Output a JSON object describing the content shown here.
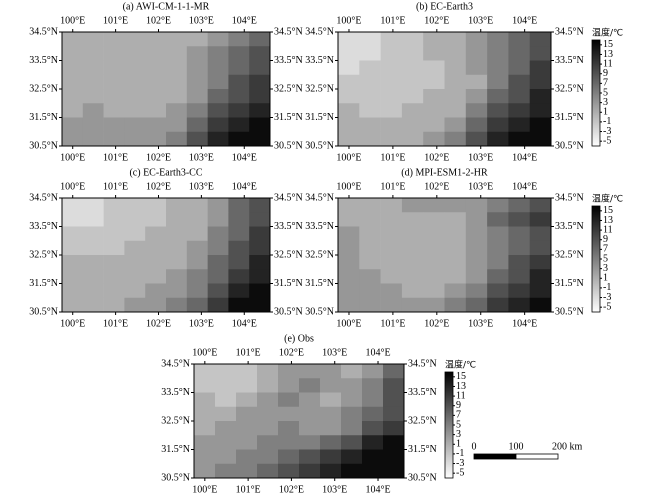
{
  "chart_data": {
    "type": "heatmap",
    "xlim": [
      99.75,
      104.6
    ],
    "ylim": [
      30.5,
      34.5
    ],
    "xticks": [
      {
        "value": 100,
        "label": "100°E"
      },
      {
        "value": 101,
        "label": "101°E"
      },
      {
        "value": 102,
        "label": "102°E"
      },
      {
        "value": 103,
        "label": "103°E"
      },
      {
        "value": 104,
        "label": "104°E"
      }
    ],
    "yticks": [
      {
        "value": 34.5,
        "label": "34.5°N"
      },
      {
        "value": 33.5,
        "label": "33.5°N"
      },
      {
        "value": 32.5,
        "label": "32.5°N"
      },
      {
        "value": 31.5,
        "label": "31.5°N"
      },
      {
        "value": 30.5,
        "label": "30.5°N"
      }
    ],
    "colorbar": {
      "title": "温度/℃",
      "lim": [
        -6,
        16
      ],
      "ticks": [
        15,
        13,
        11,
        9,
        7,
        5,
        3,
        1,
        -1,
        -3,
        -5
      ],
      "colors": [
        "#ffffff",
        "#000000"
      ]
    },
    "scale_bar": {
      "ticks": [
        0,
        100,
        {
          "value": 200,
          "label": "200 km"
        }
      ]
    },
    "panels": [
      {
        "title": "(a) AWI-CM-1-1-MR",
        "colorbar": false,
        "values": [
          [
            1,
            1,
            1,
            1,
            1,
            1,
            1,
            3,
            5,
            7
          ],
          [
            1,
            1,
            1,
            1,
            1,
            1,
            3,
            5,
            7,
            9
          ],
          [
            1,
            1,
            1,
            1,
            1,
            1,
            3,
            5,
            7,
            9
          ],
          [
            1,
            1,
            1,
            1,
            1,
            1,
            3,
            5,
            9,
            11
          ],
          [
            1,
            1,
            1,
            1,
            1,
            1,
            3,
            7,
            9,
            11
          ],
          [
            1,
            3,
            1,
            1,
            1,
            3,
            5,
            9,
            11,
            13
          ],
          [
            3,
            3,
            3,
            3,
            3,
            3,
            7,
            11,
            13,
            15
          ],
          [
            3,
            3,
            3,
            3,
            3,
            5,
            9,
            13,
            15,
            15
          ]
        ]
      },
      {
        "title": "(b) EC-Earth3",
        "colorbar": true,
        "values": [
          [
            -3,
            -3,
            -1,
            -1,
            1,
            1,
            3,
            5,
            7,
            9
          ],
          [
            -3,
            -3,
            -1,
            -1,
            1,
            1,
            3,
            5,
            7,
            9
          ],
          [
            -3,
            -1,
            -1,
            -1,
            -1,
            1,
            3,
            5,
            7,
            11
          ],
          [
            -1,
            -1,
            -1,
            -1,
            -1,
            1,
            1,
            5,
            9,
            11
          ],
          [
            -1,
            -1,
            -1,
            -1,
            1,
            1,
            3,
            7,
            9,
            13
          ],
          [
            1,
            -1,
            -1,
            1,
            1,
            1,
            5,
            9,
            11,
            13
          ],
          [
            1,
            1,
            1,
            1,
            1,
            3,
            7,
            11,
            13,
            15
          ],
          [
            1,
            1,
            1,
            1,
            3,
            5,
            9,
            13,
            15,
            15
          ]
        ]
      },
      {
        "title": "(c) EC-Earth3-CC",
        "colorbar": false,
        "values": [
          [
            -3,
            -3,
            -1,
            -1,
            -1,
            1,
            1,
            3,
            7,
            9
          ],
          [
            -3,
            -3,
            -1,
            -1,
            -1,
            1,
            1,
            3,
            7,
            9
          ],
          [
            -1,
            -1,
            -1,
            -1,
            1,
            1,
            1,
            5,
            7,
            11
          ],
          [
            -1,
            -1,
            -1,
            1,
            1,
            1,
            3,
            5,
            9,
            11
          ],
          [
            1,
            1,
            1,
            1,
            1,
            1,
            3,
            7,
            9,
            13
          ],
          [
            1,
            1,
            1,
            1,
            1,
            3,
            5,
            7,
            11,
            13
          ],
          [
            1,
            1,
            1,
            1,
            3,
            3,
            5,
            9,
            13,
            15
          ],
          [
            1,
            1,
            1,
            3,
            3,
            5,
            7,
            11,
            15,
            15
          ]
        ]
      },
      {
        "title": "(d) MPI-ESM1-2-HR",
        "colorbar": true,
        "values": [
          [
            1,
            1,
            1,
            3,
            3,
            3,
            3,
            5,
            7,
            9
          ],
          [
            1,
            1,
            1,
            1,
            1,
            1,
            3,
            7,
            9,
            11
          ],
          [
            3,
            1,
            1,
            1,
            1,
            1,
            3,
            5,
            7,
            9
          ],
          [
            3,
            1,
            1,
            1,
            1,
            1,
            3,
            5,
            7,
            9
          ],
          [
            3,
            1,
            1,
            1,
            1,
            1,
            3,
            5,
            9,
            11
          ],
          [
            3,
            3,
            1,
            1,
            1,
            1,
            3,
            7,
            9,
            13
          ],
          [
            3,
            3,
            3,
            1,
            1,
            3,
            5,
            9,
            11,
            13
          ],
          [
            3,
            3,
            3,
            3,
            3,
            5,
            7,
            11,
            13,
            15
          ]
        ]
      },
      {
        "title": "(e) Obs",
        "colorbar": true,
        "values": [
          [
            -1,
            -1,
            -1,
            1,
            3,
            3,
            3,
            1,
            3,
            7
          ],
          [
            -1,
            -1,
            -1,
            1,
            3,
            5,
            3,
            3,
            5,
            9
          ],
          [
            1,
            -1,
            1,
            3,
            5,
            3,
            1,
            3,
            5,
            9
          ],
          [
            1,
            1,
            3,
            3,
            3,
            3,
            3,
            5,
            7,
            9
          ],
          [
            1,
            3,
            3,
            3,
            5,
            3,
            3,
            5,
            9,
            11
          ],
          [
            3,
            3,
            3,
            5,
            5,
            5,
            7,
            9,
            13,
            15
          ],
          [
            3,
            3,
            5,
            5,
            7,
            9,
            11,
            13,
            15,
            15
          ],
          [
            3,
            5,
            5,
            7,
            9,
            11,
            13,
            15,
            15,
            15
          ]
        ]
      }
    ]
  }
}
